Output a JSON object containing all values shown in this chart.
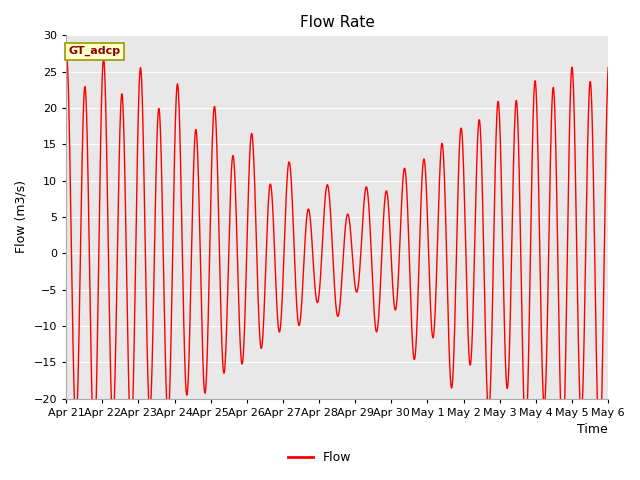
{
  "title": "Flow Rate",
  "xlabel": "Time",
  "ylabel": "Flow (m3/s)",
  "ylim": [
    -20,
    30
  ],
  "yticks": [
    -20,
    -15,
    -10,
    -5,
    0,
    5,
    10,
    15,
    20,
    25,
    30
  ],
  "legend_label": "Flow",
  "annotation_text": "GT_adcp",
  "line_color": "#FF0000",
  "background_color": "#E8E8E8",
  "fig_background": "#FFFFFF",
  "title_fontsize": 11,
  "axis_fontsize": 9,
  "tick_fontsize": 8,
  "x_tick_labels": [
    "Apr 21",
    "Apr 22",
    "Apr 23",
    "Apr 24",
    "Apr 25",
    "Apr 26",
    "Apr 27",
    "Apr 28",
    "Apr 29",
    "Apr 30",
    "May 1",
    "May 2",
    "May 3",
    "May 4",
    "May 5",
    "May 6"
  ]
}
